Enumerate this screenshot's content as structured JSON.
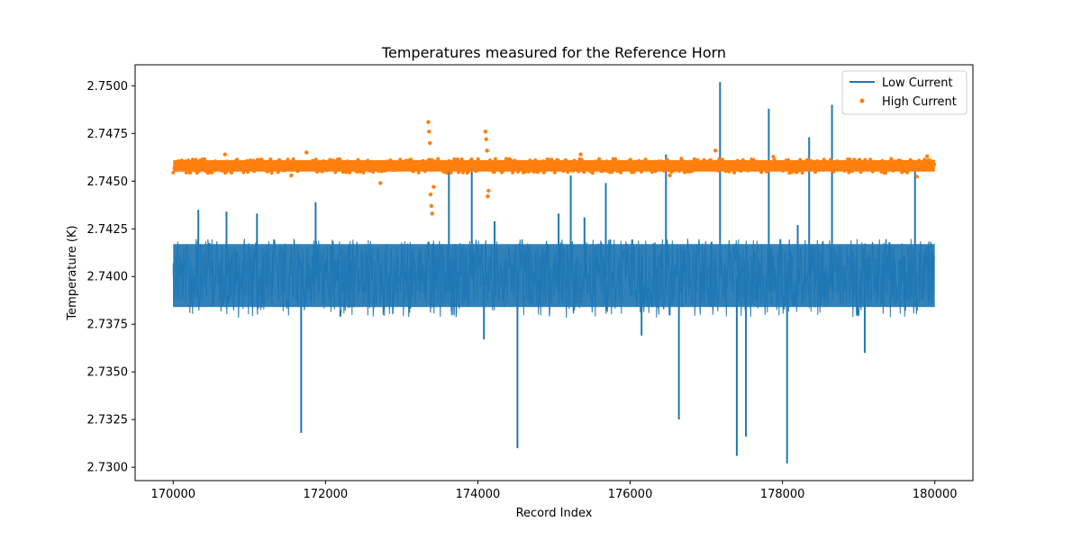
{
  "chart_data": {
    "type": "line+scatter",
    "title": "Temperatures measured for the Reference Horn",
    "xlabel": "Record Index",
    "ylabel": "Temperature (K)",
    "xlim": [
      169500,
      180500
    ],
    "ylim": [
      2.7293,
      2.7511
    ],
    "x_ticks": [
      170000,
      172000,
      174000,
      176000,
      178000,
      180000
    ],
    "y_ticks": [
      2.73,
      2.7325,
      2.735,
      2.7375,
      2.74,
      2.7425,
      2.745,
      2.7475,
      2.75
    ],
    "x_tick_labels": [
      "170000",
      "172000",
      "174000",
      "176000",
      "178000",
      "180000"
    ],
    "y_tick_labels": [
      "2.7300",
      "2.7325",
      "2.7350",
      "2.7375",
      "2.7400",
      "2.7425",
      "2.7450",
      "2.7475",
      "2.7500"
    ],
    "legend_position": "top-right",
    "series": [
      {
        "name": "Low Current",
        "kind": "line",
        "color": "#1f77b4",
        "x_range": [
          170000,
          180000
        ],
        "band_low": 2.7384,
        "band_high": 2.7417,
        "center": 2.74,
        "spikes": [
          {
            "x": 171680,
            "y": 2.7318
          },
          {
            "x": 174520,
            "y": 2.731
          },
          {
            "x": 176640,
            "y": 2.7325
          },
          {
            "x": 177400,
            "y": 2.7306
          },
          {
            "x": 177520,
            "y": 2.7316
          },
          {
            "x": 178060,
            "y": 2.7302
          },
          {
            "x": 179080,
            "y": 2.736
          },
          {
            "x": 174080,
            "y": 2.7367
          },
          {
            "x": 176150,
            "y": 2.7369
          },
          {
            "x": 177180,
            "y": 2.7502
          },
          {
            "x": 177820,
            "y": 2.7488
          },
          {
            "x": 178650,
            "y": 2.749
          },
          {
            "x": 178350,
            "y": 2.7473
          },
          {
            "x": 176470,
            "y": 2.7464
          },
          {
            "x": 173920,
            "y": 2.7462
          },
          {
            "x": 173620,
            "y": 2.7459
          },
          {
            "x": 175220,
            "y": 2.7453
          },
          {
            "x": 175680,
            "y": 2.7449
          },
          {
            "x": 179740,
            "y": 2.7456
          },
          {
            "x": 171870,
            "y": 2.7439
          },
          {
            "x": 170330,
            "y": 2.7435
          },
          {
            "x": 170700,
            "y": 2.7434
          },
          {
            "x": 171100,
            "y": 2.7433
          },
          {
            "x": 174220,
            "y": 2.7429
          },
          {
            "x": 175060,
            "y": 2.7433
          },
          {
            "x": 175400,
            "y": 2.7431
          },
          {
            "x": 178200,
            "y": 2.7427
          }
        ]
      },
      {
        "name": "High Current",
        "kind": "scatter",
        "color": "#ff7f0e",
        "x_range": [
          170000,
          180000
        ],
        "center": 2.7458,
        "band_low": 2.7455,
        "band_high": 2.7461,
        "outliers": [
          {
            "x": 173350,
            "y": 2.7481
          },
          {
            "x": 173360,
            "y": 2.7476
          },
          {
            "x": 173370,
            "y": 2.747
          },
          {
            "x": 173380,
            "y": 2.7443
          },
          {
            "x": 173390,
            "y": 2.7437
          },
          {
            "x": 173400,
            "y": 2.7433
          },
          {
            "x": 173420,
            "y": 2.7447
          },
          {
            "x": 174100,
            "y": 2.7476
          },
          {
            "x": 174110,
            "y": 2.7472
          },
          {
            "x": 174120,
            "y": 2.7466
          },
          {
            "x": 174130,
            "y": 2.7442
          },
          {
            "x": 174140,
            "y": 2.7445
          },
          {
            "x": 170680,
            "y": 2.7464
          },
          {
            "x": 171750,
            "y": 2.7465
          },
          {
            "x": 172720,
            "y": 2.7449
          },
          {
            "x": 171550,
            "y": 2.7453
          },
          {
            "x": 175350,
            "y": 2.7464
          },
          {
            "x": 177120,
            "y": 2.7466
          },
          {
            "x": 176520,
            "y": 2.7453
          },
          {
            "x": 179900,
            "y": 2.7463
          }
        ]
      }
    ]
  }
}
